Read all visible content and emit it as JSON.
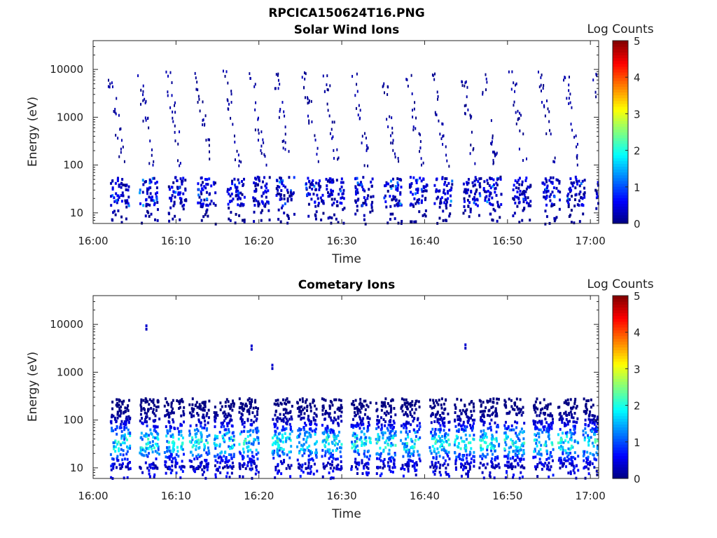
{
  "figure": {
    "title": "RPCICA150624T16.PNG"
  },
  "chart_data": [
    {
      "type": "heatmap",
      "title": "Solar Wind Ions",
      "xlabel": "Time",
      "ylabel": "Energy (eV)",
      "x_ticks": [
        "16:00",
        "16:10",
        "16:20",
        "16:30",
        "16:40",
        "16:50",
        "17:00"
      ],
      "y_ticks": [
        "10",
        "100",
        "1000",
        "10000"
      ],
      "y_scale": "log",
      "y_range": [
        6,
        40000
      ],
      "x_range_minutes": [
        0,
        61
      ],
      "colorbar": {
        "label": "Log Counts",
        "ticks": [
          "0",
          "1",
          "2",
          "3",
          "4",
          "5"
        ],
        "range": [
          0,
          5
        ],
        "colormap": "jet"
      },
      "sweep_start_minutes": [
        2,
        5.5,
        9,
        12.5,
        16,
        19,
        22,
        25.5,
        28,
        31.5,
        35,
        38,
        41,
        44.5,
        47,
        50.5,
        54,
        57,
        60.5
      ],
      "core_energy_band_eV": [
        15,
        60
      ],
      "typical_log_counts": [
        0,
        0.7
      ],
      "scatter_energy_band_eV": [
        100,
        10000
      ]
    },
    {
      "type": "heatmap",
      "title": "Cometary Ions",
      "xlabel": "Time",
      "ylabel": "Energy (eV)",
      "x_ticks": [
        "16:00",
        "16:10",
        "16:20",
        "16:30",
        "16:40",
        "16:50",
        "17:00"
      ],
      "y_ticks": [
        "10",
        "100",
        "1000",
        "10000"
      ],
      "y_scale": "log",
      "y_range": [
        6,
        40000
      ],
      "x_range_minutes": [
        0,
        61
      ],
      "colorbar": {
        "label": "Log Counts",
        "ticks": [
          "0",
          "1",
          "2",
          "3",
          "4",
          "5"
        ],
        "range": [
          0,
          5
        ],
        "colormap": "jet"
      },
      "sweep_start_minutes": [
        2,
        5.5,
        8.5,
        11.5,
        14.5,
        17.5,
        21.5,
        24.5,
        27.5,
        31,
        34,
        37,
        40.5,
        43.5,
        46.5,
        49.5,
        53,
        56,
        59
      ],
      "core_energy_band_eV": [
        10,
        300
      ],
      "peak_log_counts": 2.3,
      "sparse_high_energy_points": [
        {
          "t": 6.3,
          "E": 10000
        },
        {
          "t": 19,
          "E": 3800
        },
        {
          "t": 21.5,
          "E": 1500
        },
        {
          "t": 44.8,
          "E": 4000
        }
      ]
    }
  ]
}
